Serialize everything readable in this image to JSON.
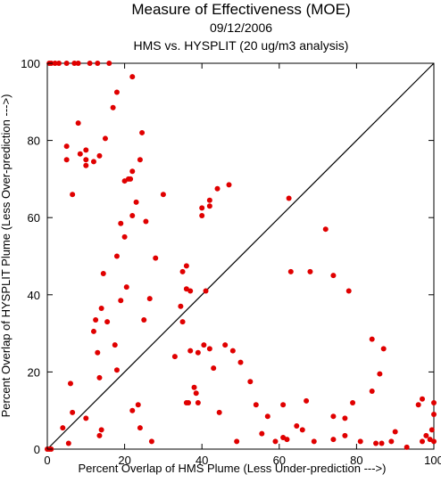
{
  "chart_data": {
    "type": "scatter",
    "title": "Measure of Effectiveness (MOE)",
    "subtitle": "09/12/2006",
    "subtitle2": "HMS vs. HYSPLIT  (20 ug/m3 analysis)",
    "xlabel": "Percent Overlap of HMS Plume (Less Under-prediction --->)",
    "ylabel": "Percent Overlap of HYSPLIT Plume (Less Over-prediction --->)",
    "xlim": [
      0,
      100
    ],
    "ylim": [
      0,
      100
    ],
    "x_ticks": [
      "0",
      "20",
      "40",
      "60",
      "80",
      "100"
    ],
    "y_ticks": [
      "0",
      "20",
      "40",
      "60",
      "80",
      "100"
    ],
    "grid": false,
    "reference_line": "diagonal y = x",
    "point_color": "#e00000",
    "line_color": "#000000",
    "points": [
      [
        0.5,
        100
      ],
      [
        1,
        100
      ],
      [
        2,
        100
      ],
      [
        3,
        100
      ],
      [
        5,
        100
      ],
      [
        7,
        100
      ],
      [
        8,
        100
      ],
      [
        11,
        100
      ],
      [
        13,
        100
      ],
      [
        16,
        100
      ],
      [
        22,
        96.5
      ],
      [
        18,
        92.5
      ],
      [
        17,
        88.5
      ],
      [
        8,
        84.5
      ],
      [
        15,
        80.5
      ],
      [
        24.5,
        82
      ],
      [
        5,
        78.5
      ],
      [
        8.5,
        76.5
      ],
      [
        10,
        77.5
      ],
      [
        13.5,
        76
      ],
      [
        24,
        75
      ],
      [
        5,
        75
      ],
      [
        10,
        75
      ],
      [
        12,
        74.5
      ],
      [
        10,
        73.5
      ],
      [
        22,
        72
      ],
      [
        21,
        70
      ],
      [
        21.5,
        70
      ],
      [
        20,
        69.5
      ],
      [
        30,
        66
      ],
      [
        42,
        64.5
      ],
      [
        47,
        68.5
      ],
      [
        44,
        67.5
      ],
      [
        6.5,
        66
      ],
      [
        23,
        64
      ],
      [
        40,
        62.5
      ],
      [
        42,
        63
      ],
      [
        62.5,
        65
      ],
      [
        22,
        60.5
      ],
      [
        19,
        58.5
      ],
      [
        25.5,
        59
      ],
      [
        40,
        60.5
      ],
      [
        20,
        55
      ],
      [
        18,
        50
      ],
      [
        28,
        49.5
      ],
      [
        36,
        47.5
      ],
      [
        35,
        46
      ],
      [
        14.5,
        45.5
      ],
      [
        63,
        46
      ],
      [
        68,
        46
      ],
      [
        72,
        57
      ],
      [
        74,
        45
      ],
      [
        78,
        41
      ],
      [
        20.5,
        42
      ],
      [
        36,
        41.5
      ],
      [
        37,
        41
      ],
      [
        41,
        41
      ],
      [
        19,
        38.5
      ],
      [
        14,
        36.5
      ],
      [
        26.5,
        39
      ],
      [
        34.5,
        37
      ],
      [
        15.5,
        33
      ],
      [
        25,
        33.5
      ],
      [
        35,
        33
      ],
      [
        12.5,
        33.5
      ],
      [
        12,
        30.5
      ],
      [
        17.5,
        27
      ],
      [
        13,
        25
      ],
      [
        33,
        24
      ],
      [
        37,
        25.5
      ],
      [
        39,
        25
      ],
      [
        40.5,
        27
      ],
      [
        42,
        26
      ],
      [
        43,
        21
      ],
      [
        46,
        27
      ],
      [
        48,
        25.5
      ],
      [
        50,
        22.5
      ],
      [
        18,
        20.5
      ],
      [
        13.5,
        18.5
      ],
      [
        6,
        17
      ],
      [
        38,
        16
      ],
      [
        38.5,
        14.5
      ],
      [
        52.5,
        17.5
      ],
      [
        84,
        28.5
      ],
      [
        87,
        26
      ],
      [
        84,
        15
      ],
      [
        86,
        19.5
      ],
      [
        36,
        12
      ],
      [
        39,
        12
      ],
      [
        22,
        10
      ],
      [
        23.5,
        11.5
      ],
      [
        36.5,
        12
      ],
      [
        44.5,
        9.5
      ],
      [
        54,
        11.5
      ],
      [
        57,
        8.5
      ],
      [
        61,
        11.5
      ],
      [
        67,
        12.5
      ],
      [
        74,
        8.5
      ],
      [
        77,
        8
      ],
      [
        79,
        12
      ],
      [
        6.5,
        9.5
      ],
      [
        10,
        8
      ],
      [
        4,
        5.5
      ],
      [
        14,
        5
      ],
      [
        13.5,
        3.5
      ],
      [
        24,
        5.5
      ],
      [
        5.5,
        1.5
      ],
      [
        27,
        2
      ],
      [
        49,
        2
      ],
      [
        55.5,
        4
      ],
      [
        59,
        2
      ],
      [
        61,
        3
      ],
      [
        62,
        2.5
      ],
      [
        64.5,
        6
      ],
      [
        66,
        5
      ],
      [
        69,
        2
      ],
      [
        74,
        2.5
      ],
      [
        77,
        3.5
      ],
      [
        81,
        2
      ],
      [
        85,
        1.5
      ],
      [
        86.5,
        1.5
      ],
      [
        89,
        2
      ],
      [
        90,
        4.5
      ],
      [
        93,
        0.5
      ],
      [
        96,
        11.5
      ],
      [
        97,
        13
      ],
      [
        98,
        3.5
      ],
      [
        99,
        2.5
      ],
      [
        100,
        12
      ],
      [
        100,
        9
      ],
      [
        100,
        2
      ],
      [
        99.5,
        5
      ],
      [
        97,
        2
      ],
      [
        0.5,
        0
      ],
      [
        1,
        0
      ],
      [
        0,
        0
      ]
    ]
  }
}
